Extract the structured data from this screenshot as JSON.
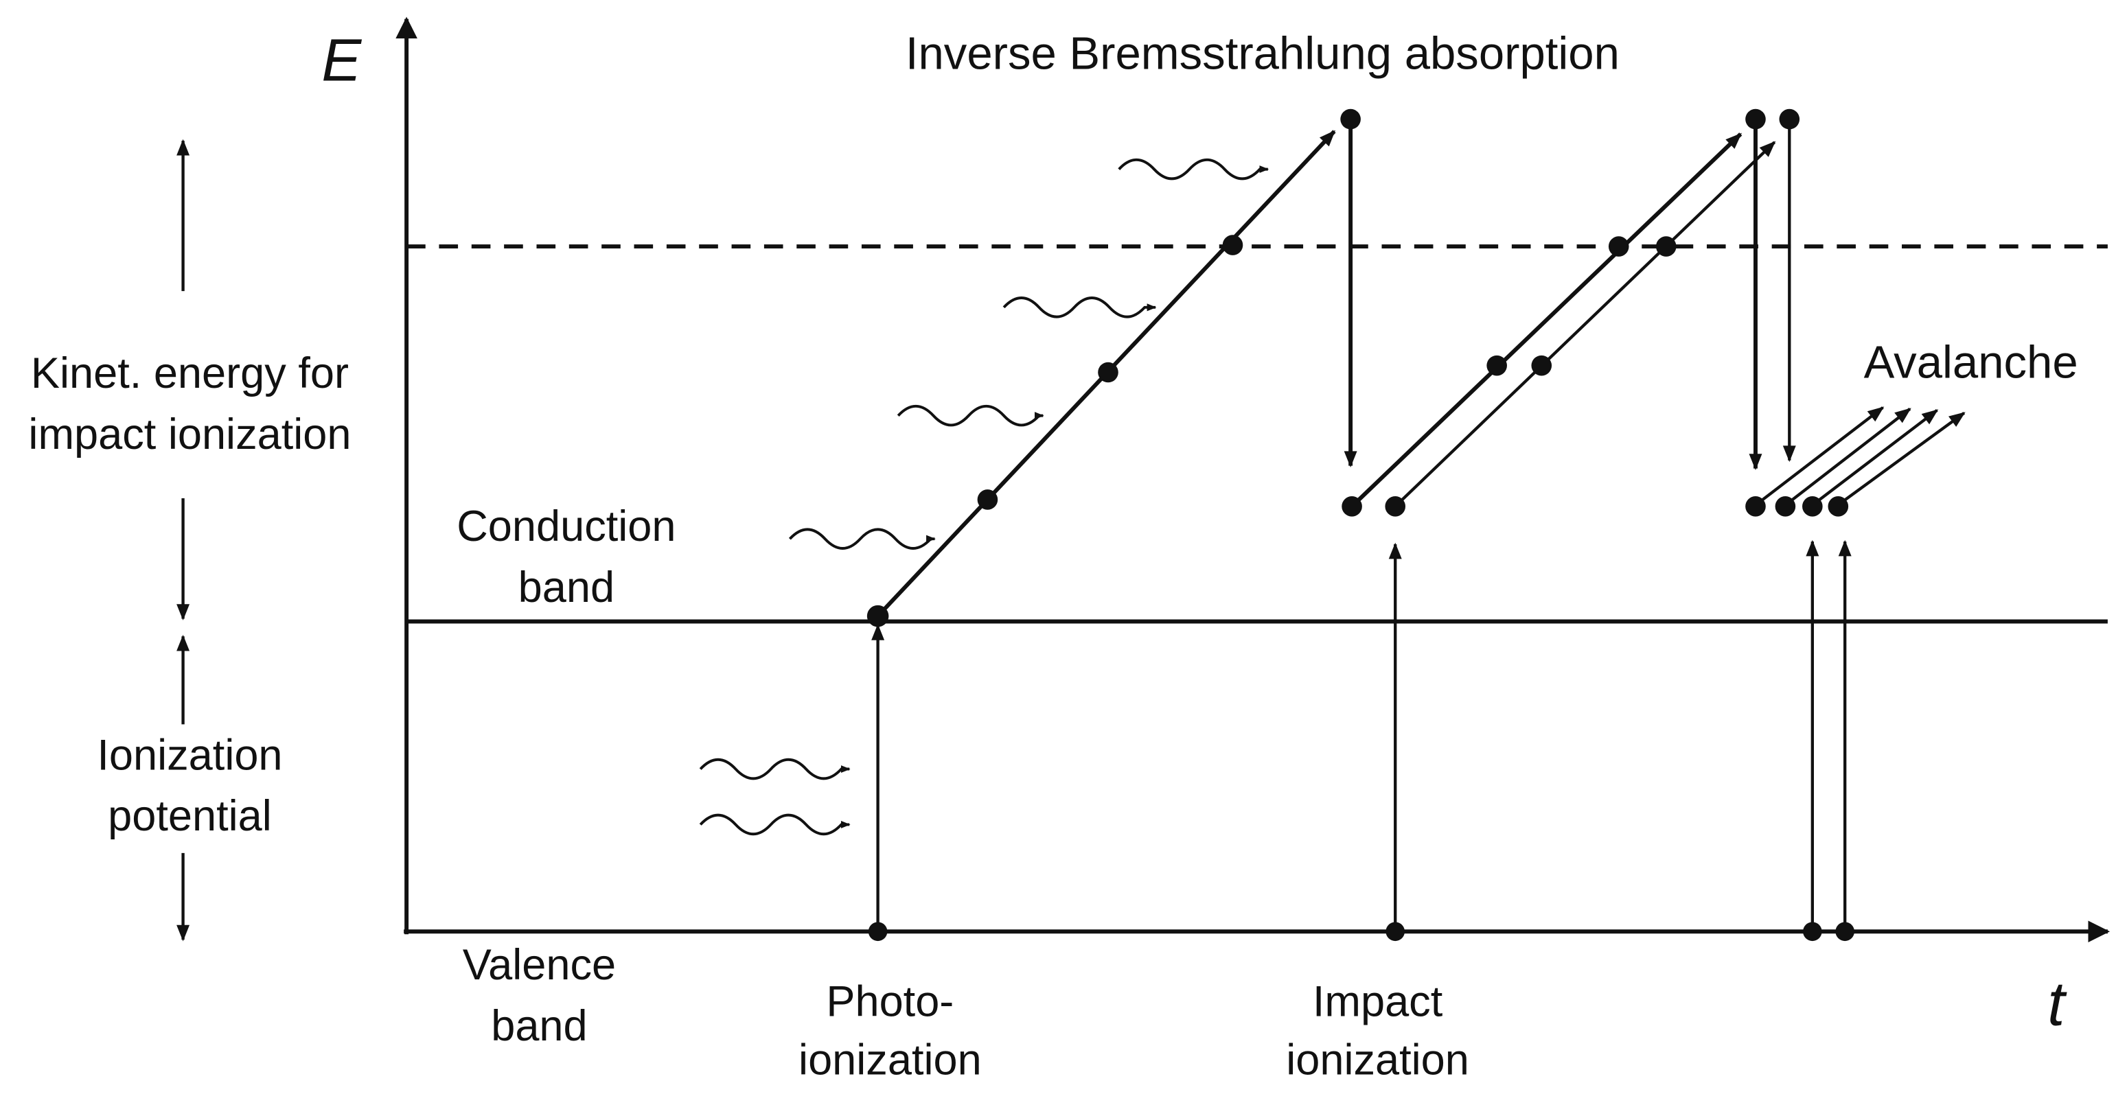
{
  "axes": {
    "y_label": "E",
    "x_label": "t"
  },
  "title": "Inverse Bremsstrahlung absorption",
  "labels": {
    "kinetic_energy": [
      "Kinet. energy for",
      "impact ionization"
    ],
    "conduction_band": [
      "Conduction",
      "band"
    ],
    "ionization_potential": [
      "Ionization",
      "potential"
    ],
    "valence_band": [
      "Valence",
      "band"
    ],
    "photo_ionization": [
      "Photo-",
      "ionization"
    ],
    "impact_ionization": [
      "Impact",
      "ionization"
    ],
    "avalanche": "Avalanche"
  }
}
